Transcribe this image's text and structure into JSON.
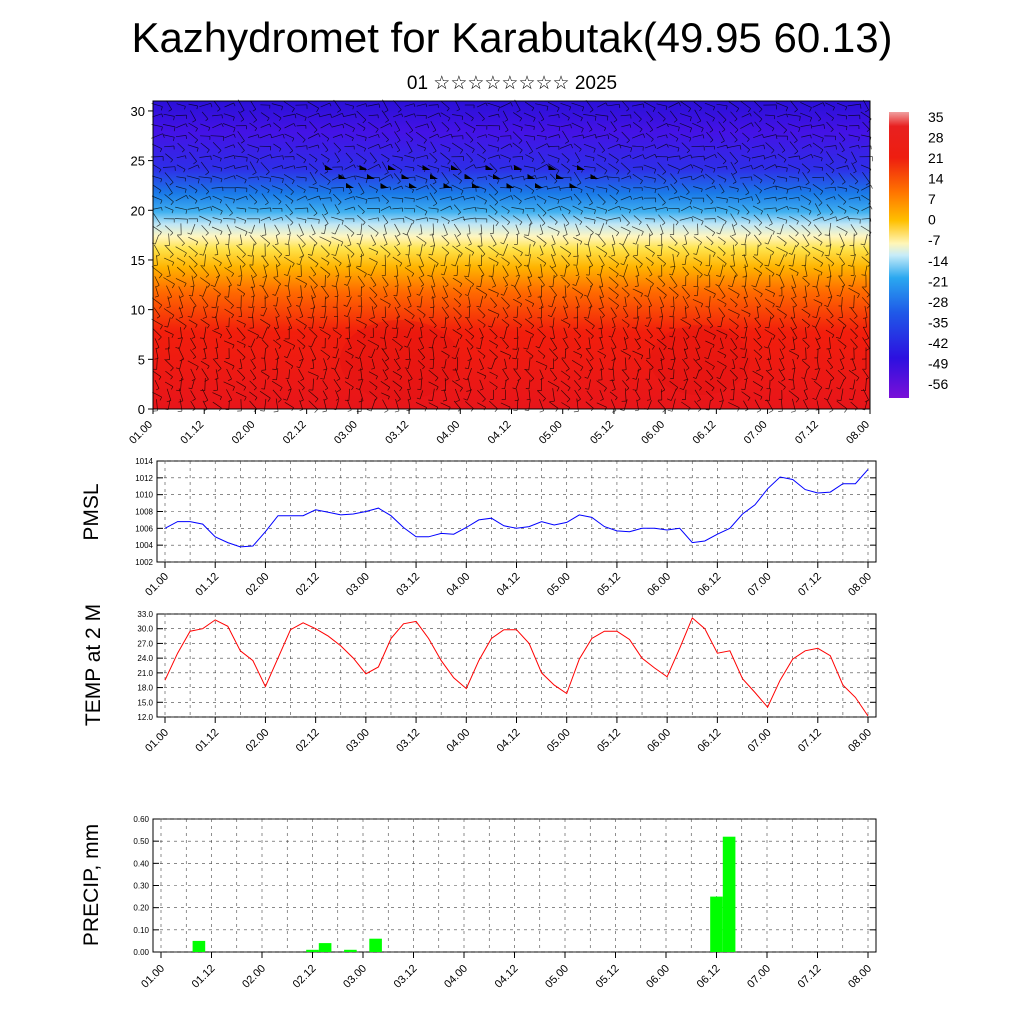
{
  "title": "Kazhydromet for Karabutak(49.95 60.13)",
  "subtitle": "01 ☆☆☆☆☆☆☆☆ 2025",
  "time_labels": [
    "01.00",
    "01.12",
    "02.00",
    "02.12",
    "03.00",
    "03.12",
    "04.00",
    "04.12",
    "05.00",
    "05.12",
    "06.00",
    "06.12",
    "07.00",
    "07.12",
    "08.00"
  ],
  "chart_data": [
    {
      "type": "heatmap",
      "name": "upper",
      "y_ticks": [
        "0",
        "5",
        "10",
        "15",
        "20",
        "25",
        "30"
      ],
      "ylim": [
        0,
        31
      ],
      "colorbar_labels": [
        "35",
        "28",
        "21",
        "14",
        "7",
        "0",
        "-7",
        "-14",
        "-21",
        "-28",
        "-35",
        "-42",
        "-49",
        "-56"
      ],
      "colorbar_range": [
        -63,
        38
      ],
      "annotation": "vertical profile of temperature with wind barbs"
    },
    {
      "type": "line",
      "name": "pmsl",
      "ylabel": "PMSL",
      "ylim": [
        1002,
        1014
      ],
      "y_ticks": [
        "1014",
        "1012",
        "1010",
        "1008",
        "1006",
        "1004",
        "1002"
      ],
      "color": "#0000ff",
      "values": [
        1006.0,
        1006.8,
        1006.8,
        1006.5,
        1005.0,
        1004.3,
        1003.8,
        1003.9,
        1005.6,
        1007.5,
        1007.5,
        1007.5,
        1008.2,
        1007.9,
        1007.6,
        1007.7,
        1008.0,
        1008.4,
        1007.5,
        1006.1,
        1005.0,
        1005.0,
        1005.4,
        1005.3,
        1006.1,
        1007.0,
        1007.2,
        1006.3,
        1006.0,
        1006.2,
        1006.8,
        1006.4,
        1006.7,
        1007.6,
        1007.3,
        1006.2,
        1005.7,
        1005.6,
        1006.0,
        1006.0,
        1005.8,
        1006.0,
        1004.3,
        1004.5,
        1005.3,
        1006.0,
        1007.7,
        1008.8,
        1010.7,
        1012.1,
        1011.8,
        1010.6,
        1010.2,
        1010.3,
        1011.3,
        1011.3,
        1013.0
      ]
    },
    {
      "type": "line",
      "name": "temp",
      "ylabel": "TEMP at 2 M",
      "ylim": [
        12,
        33
      ],
      "y_ticks": [
        "33.0",
        "30.0",
        "27.0",
        "24.0",
        "21.0",
        "18.0",
        "15.0",
        "12.0"
      ],
      "color": "#ff0000",
      "values": [
        19.5,
        25.0,
        29.5,
        30.0,
        31.8,
        30.5,
        25.5,
        23.5,
        18.2,
        24.0,
        29.8,
        31.2,
        30.0,
        28.5,
        26.5,
        24.0,
        20.8,
        22.2,
        28.0,
        31.0,
        31.5,
        28.0,
        23.5,
        20.0,
        17.8,
        23.5,
        28.0,
        29.8,
        29.8,
        27.0,
        21.0,
        18.5,
        16.8,
        23.8,
        28.0,
        29.5,
        29.5,
        27.8,
        24.0,
        22.0,
        20.2,
        26.0,
        32.2,
        30.0,
        25.0,
        25.5,
        19.8,
        17.0,
        14.0,
        19.5,
        23.8,
        25.5,
        26.0,
        24.5,
        18.5,
        16.0,
        12.2
      ]
    },
    {
      "type": "bar",
      "name": "precip",
      "ylabel": "PRECIP, mm",
      "ylim": [
        0,
        0.6
      ],
      "y_ticks": [
        "0.60",
        "0.50",
        "0.40",
        "0.30",
        "0.20",
        "0.10",
        "0.00"
      ],
      "color": "#00ff00",
      "bars": [
        {
          "x": 3,
          "value": 0.05
        },
        {
          "x": 12,
          "value": 0.01
        },
        {
          "x": 13,
          "value": 0.04
        },
        {
          "x": 15,
          "value": 0.01
        },
        {
          "x": 17,
          "value": 0.06
        },
        {
          "x": 44,
          "value": 0.25
        },
        {
          "x": 45,
          "value": 0.52
        }
      ]
    }
  ]
}
